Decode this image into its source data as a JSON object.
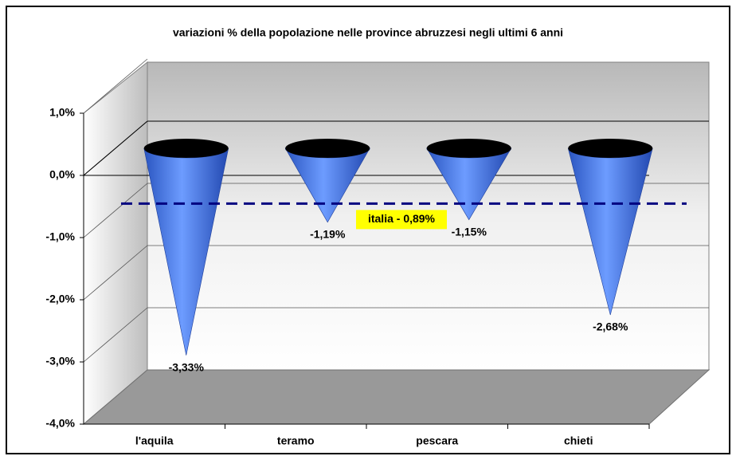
{
  "chart_data": {
    "type": "cone",
    "title": "variazioni % della popolazione nelle province abruzzesi negli ultimi 6 anni",
    "categories": [
      "l'aquila",
      "teramo",
      "pescara",
      "chieti"
    ],
    "values": [
      -3.33,
      -1.19,
      -1.15,
      -2.68
    ],
    "value_labels": [
      "-3,33%",
      "-1,19%",
      "-1,15%",
      "-2,68%"
    ],
    "color": "#4a7ee8",
    "ylim": [
      -4,
      1
    ],
    "yticks": [
      {
        "value": 1,
        "label": "1,0%"
      },
      {
        "value": 0,
        "label": "0,0%"
      },
      {
        "value": -1,
        "label": "-1,0%"
      },
      {
        "value": -2,
        "label": "-2,0%"
      },
      {
        "value": -3,
        "label": "-3,0%"
      },
      {
        "value": -4,
        "label": "-4,0%"
      }
    ],
    "grid": true,
    "reference_line": {
      "label": "italia - 0,89%",
      "value": -0.89,
      "color": "#000080"
    }
  }
}
